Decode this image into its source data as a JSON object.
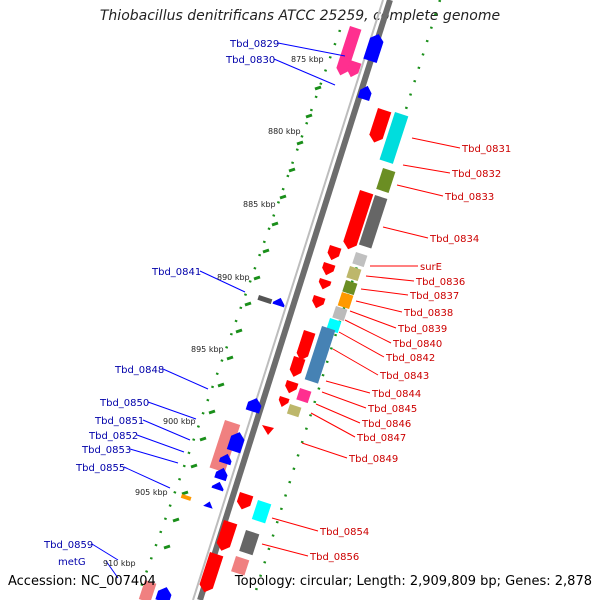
{
  "title": "Thiobacillus denitrificans ATCC 25259, complete genome",
  "footer": {
    "accession": "Accession: NC_007404",
    "summary": "Topology: circular; Length: 2,909,809 bp; Genes: 2,878"
  },
  "colors": {
    "forward_gene": "#ff0000",
    "reverse_gene": "#0000ff",
    "forward_label": "#cc0000",
    "reverse_label": "#0000aa",
    "ruler": "#777777",
    "tick": "#009900"
  },
  "kbp_ticks": [
    "875 kbp",
    "880 kbp",
    "885 kbp",
    "890 kbp",
    "895 kbp",
    "900 kbp",
    "905 kbp",
    "910 kbp"
  ],
  "forward_labels": [
    "Tbd_0831",
    "Tbd_0832",
    "Tbd_0833",
    "Tbd_0834",
    "surE",
    "Tbd_0836",
    "Tbd_0837",
    "Tbd_0838",
    "Tbd_0839",
    "Tbd_0840",
    "Tbd_0842",
    "Tbd_0843",
    "Tbd_0844",
    "Tbd_0845",
    "Tbd_0846",
    "Tbd_0847",
    "Tbd_0849",
    "Tbd_0854",
    "Tbd_0856"
  ],
  "reverse_labels": [
    "Tbd_0829",
    "Tbd_0830",
    "Tbd_0841",
    "Tbd_0848",
    "Tbd_0850",
    "Tbd_0851",
    "Tbd_0852",
    "Tbd_0853",
    "Tbd_0855",
    "Tbd_0859",
    "metG"
  ]
}
